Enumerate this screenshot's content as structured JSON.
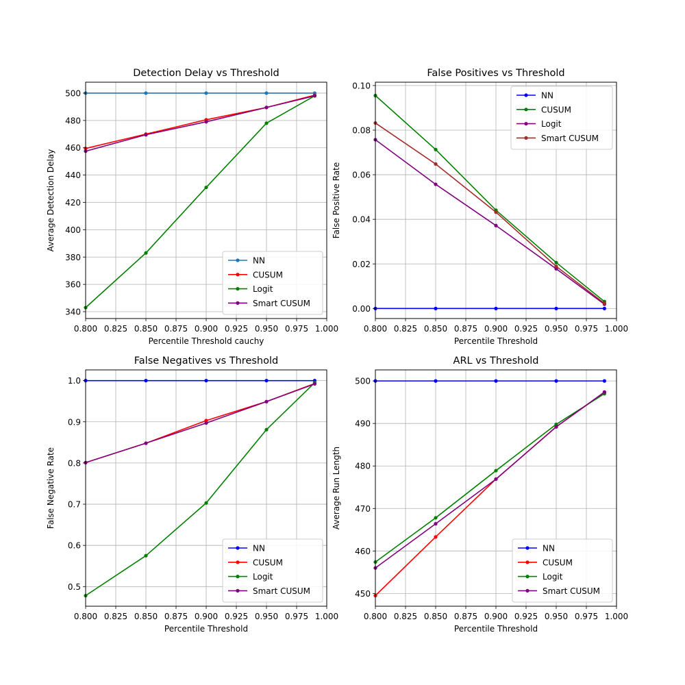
{
  "chart_data": [
    {
      "type": "line",
      "title": "Detection Delay vs Threshold",
      "xlabel": "Percentile Threshold cauchy",
      "ylabel": "Average Detection Delay",
      "xlim": [
        0.8,
        1.0
      ],
      "ylim": [
        335,
        508
      ],
      "xticks": [
        0.8,
        0.825,
        0.85,
        0.875,
        0.9,
        0.925,
        0.95,
        0.975,
        1.0
      ],
      "xtick_labels": [
        "0.800",
        "0.825",
        "0.850",
        "0.875",
        "0.900",
        "0.925",
        "0.950",
        "0.975",
        "1.000"
      ],
      "yticks": [
        340,
        360,
        380,
        400,
        420,
        440,
        460,
        480,
        500
      ],
      "ytick_labels": [
        "340",
        "360",
        "380",
        "400",
        "420",
        "440",
        "460",
        "480",
        "500"
      ],
      "grid": true,
      "legend": "lower-right",
      "x": [
        0.8,
        0.85,
        0.9,
        0.95,
        0.99
      ],
      "series": [
        {
          "name": "NN",
          "color": "#1f77b4",
          "values": [
            500,
            500,
            500,
            500,
            500
          ]
        },
        {
          "name": "CUSUM",
          "color": "#ff0000",
          "values": [
            459.5,
            470,
            480.5,
            489.5,
            498.5
          ]
        },
        {
          "name": "Logit",
          "color": "#008000",
          "values": [
            343,
            383,
            431,
            478,
            498
          ]
        },
        {
          "name": "Smart CUSUM",
          "color": "#800080",
          "values": [
            457.5,
            469.5,
            479,
            489.5,
            498
          ]
        }
      ]
    },
    {
      "type": "line",
      "title": "False Positives vs Threshold",
      "xlabel": "Percentile Threshold",
      "ylabel": "False Positive Rate",
      "xlim": [
        0.8,
        1.0
      ],
      "ylim": [
        -0.0045,
        0.1015
      ],
      "xticks": [
        0.8,
        0.825,
        0.85,
        0.875,
        0.9,
        0.925,
        0.95,
        0.975,
        1.0
      ],
      "xtick_labels": [
        "0.800",
        "0.825",
        "0.850",
        "0.875",
        "0.900",
        "0.925",
        "0.950",
        "0.975",
        "1.000"
      ],
      "yticks": [
        0.0,
        0.02,
        0.04,
        0.06,
        0.08,
        0.1
      ],
      "ytick_labels": [
        "0.00",
        "0.02",
        "0.04",
        "0.06",
        "0.08",
        "0.10"
      ],
      "grid": true,
      "legend": "upper-right",
      "x": [
        0.8,
        0.85,
        0.9,
        0.95,
        0.99
      ],
      "series": [
        {
          "name": "NN",
          "color": "#0000ff",
          "values": [
            0,
            0,
            0,
            0,
            0
          ]
        },
        {
          "name": "CUSUM",
          "color": "#008000",
          "values": [
            0.0955,
            0.0713,
            0.0441,
            0.0206,
            0.0031
          ]
        },
        {
          "name": "Logit",
          "color": "#800080",
          "values": [
            0.0757,
            0.0557,
            0.0372,
            0.0178,
            0.0019
          ]
        },
        {
          "name": "Smart CUSUM",
          "color": "#a52a2a",
          "values": [
            0.0832,
            0.0648,
            0.0432,
            0.0189,
            0.0023
          ]
        }
      ]
    },
    {
      "type": "line",
      "title": "False Negatives vs Threshold",
      "xlabel": "Percentile Threshold",
      "ylabel": "False Negative Rate",
      "xlim": [
        0.8,
        1.0
      ],
      "ylim": [
        0.4523,
        1.026
      ],
      "xticks": [
        0.8,
        0.825,
        0.85,
        0.875,
        0.9,
        0.925,
        0.95,
        0.975,
        1.0
      ],
      "xtick_labels": [
        "0.800",
        "0.825",
        "0.850",
        "0.875",
        "0.900",
        "0.925",
        "0.950",
        "0.975",
        "1.000"
      ],
      "yticks": [
        0.5,
        0.6,
        0.7,
        0.8,
        0.9,
        1.0
      ],
      "ytick_labels": [
        "0.5",
        "0.6",
        "0.7",
        "0.8",
        "0.9",
        "1.0"
      ],
      "grid": true,
      "legend": "lower-right",
      "x": [
        0.8,
        0.85,
        0.9,
        0.95,
        0.99
      ],
      "series": [
        {
          "name": "NN",
          "color": "#0000ff",
          "values": [
            1.0,
            1.0,
            1.0,
            1.0,
            1.0
          ]
        },
        {
          "name": "CUSUM",
          "color": "#ff0000",
          "values": [
            0.801,
            0.848,
            0.903,
            0.949,
            0.993
          ]
        },
        {
          "name": "Logit",
          "color": "#008000",
          "values": [
            0.478,
            0.575,
            0.703,
            0.881,
            0.995
          ]
        },
        {
          "name": "Smart CUSUM",
          "color": "#800080",
          "values": [
            0.801,
            0.848,
            0.897,
            0.949,
            0.992
          ]
        }
      ]
    },
    {
      "type": "line",
      "title": "ARL vs Threshold",
      "xlabel": "Percentile Threshold",
      "ylabel": "Average Run Length",
      "xlim": [
        0.8,
        1.0
      ],
      "ylim": [
        447,
        502.6
      ],
      "xticks": [
        0.8,
        0.825,
        0.85,
        0.875,
        0.9,
        0.925,
        0.95,
        0.975,
        1.0
      ],
      "xtick_labels": [
        "0.800",
        "0.825",
        "0.850",
        "0.875",
        "0.900",
        "0.925",
        "0.950",
        "0.975",
        "1.000"
      ],
      "yticks": [
        450,
        460,
        470,
        480,
        490,
        500
      ],
      "ytick_labels": [
        "450",
        "460",
        "470",
        "480",
        "490",
        "500"
      ],
      "grid": true,
      "legend": "lower-right",
      "x": [
        0.8,
        0.85,
        0.9,
        0.95,
        0.99
      ],
      "series": [
        {
          "name": "NN",
          "color": "#0000ff",
          "values": [
            500,
            500,
            500,
            500,
            500
          ]
        },
        {
          "name": "CUSUM",
          "color": "#ff0000",
          "values": [
            449.5,
            463.3,
            476.9,
            489.2,
            497.3
          ]
        },
        {
          "name": "Logit",
          "color": "#008000",
          "values": [
            457.4,
            467.8,
            478.9,
            489.8,
            497.0
          ]
        },
        {
          "name": "Smart CUSUM",
          "color": "#800080",
          "values": [
            456.0,
            466.4,
            476.9,
            489.2,
            497.4
          ]
        }
      ]
    }
  ]
}
